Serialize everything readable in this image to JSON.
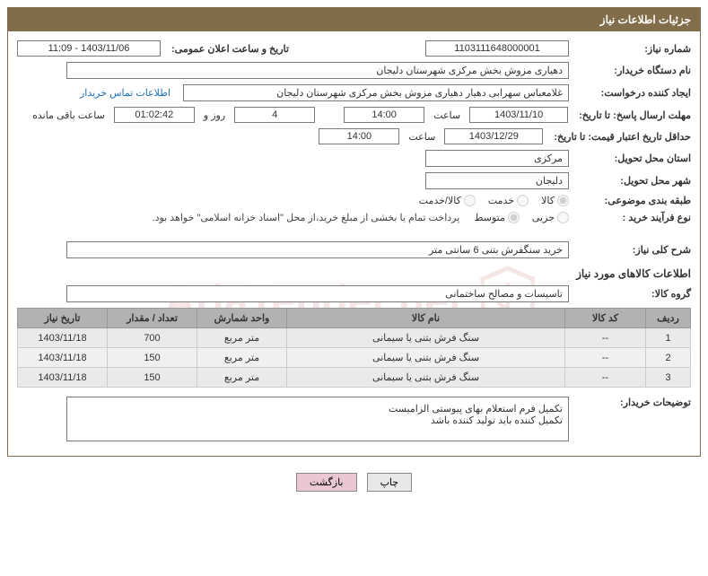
{
  "panel_title": "جزئیات اطلاعات نیاز",
  "labels": {
    "need_no": "شماره نیاز:",
    "pub_date": "تاریخ و ساعت اعلان عمومی:",
    "buyer_org": "نام دستگاه خریدار:",
    "requester": "ایجاد کننده درخواست:",
    "contact_link": "اطلاعات تماس خریدار",
    "deadline": "مهلت ارسال پاسخ: تا تاریخ:",
    "hour": "ساعت",
    "day_and": "روز و",
    "remaining": "ساعت باقی مانده",
    "validity": "حداقل تاریخ اعتبار قیمت: تا تاریخ:",
    "deliv_province": "استان محل تحویل:",
    "deliv_city": "شهر محل تحویل:",
    "subject_class": "طبقه بندی موضوعی:",
    "purchase_type": "نوع فرآیند خرید :",
    "payment_note": "پرداخت تمام یا بخشی از مبلغ خرید،از محل \"اسناد خزانه اسلامی\" خواهد بود.",
    "need_summary": "شرح کلی نیاز:",
    "goods_section": "اطلاعات کالاهای مورد نیاز",
    "goods_group": "گروه کالا:",
    "buyer_notes": "توضیحات خریدار:"
  },
  "radios": {
    "kala": "کالا",
    "khadamat": "خدمت",
    "kala_khadamat": "کالا/خدمت",
    "jozei": "جزیی",
    "motavaset": "متوسط"
  },
  "values": {
    "need_no": "1103111648000001",
    "pub_date": "1403/11/06 - 11:09",
    "buyer_org": "دهیاری مزوش بخش مرکزی شهرستان دلیجان",
    "requester": "غلامعباس سهرابی دهیار دهیاری مزوش بخش مرکزی شهرستان دلیجان",
    "deadline_date": "1403/11/10",
    "deadline_hour": "14:00",
    "days_left": "4",
    "time_left": "01:02:42",
    "validity_date": "1403/12/29",
    "validity_hour": "14:00",
    "province": "مرکزی",
    "city": "دلیجان",
    "summary": "خرید سنگفرش بتنی 6 سانتی متر",
    "goods_group": "تاسیسات و مصالح ساختمانی",
    "buyer_notes_l1": "تکمیل فرم استعلام بهای پیوستی الزامیست",
    "buyer_notes_l2": "تکمیل کننده باید تولید کننده باشد"
  },
  "table": {
    "headers": {
      "row": "ردیف",
      "code": "کد کالا",
      "name": "نام کالا",
      "unit": "واحد شمارش",
      "qty": "تعداد / مقدار",
      "date": "تاریخ نیاز"
    },
    "rows": [
      {
        "row": "1",
        "code": "--",
        "name": "سنگ فرش بتنی یا سیمانی",
        "unit": "متر مربع",
        "qty": "700",
        "date": "1403/11/18"
      },
      {
        "row": "2",
        "code": "--",
        "name": "سنگ فرش بتنی یا سیمانی",
        "unit": "متر مربع",
        "qty": "150",
        "date": "1403/11/18"
      },
      {
        "row": "3",
        "code": "--",
        "name": "سنگ فرش بتنی یا سیمانی",
        "unit": "متر مربع",
        "qty": "150",
        "date": "1403/11/18"
      }
    ]
  },
  "buttons": {
    "print": "چاپ",
    "back": "بازگشت"
  },
  "watermark": "AriaTender.net"
}
